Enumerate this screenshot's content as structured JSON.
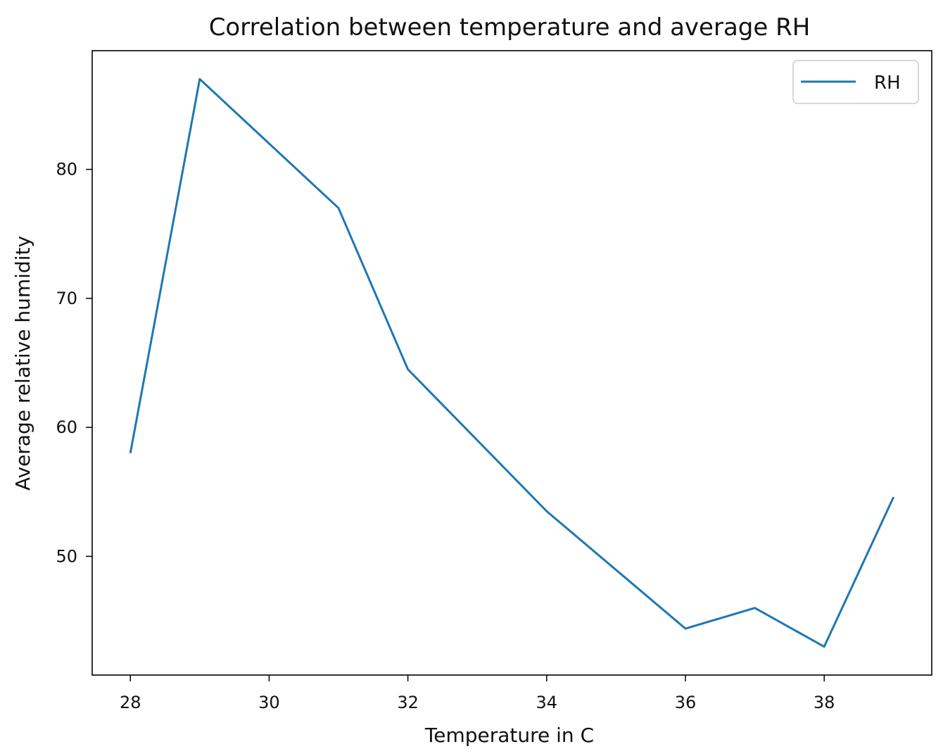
{
  "chart_data": {
    "type": "line",
    "title": "Correlation between temperature and average RH",
    "xlabel": "Temperature in C",
    "ylabel": "Average relative humidity",
    "x": [
      28,
      29,
      31,
      32,
      34,
      36,
      37,
      38,
      39
    ],
    "series": [
      {
        "name": "RH",
        "color": "#1f77b4",
        "values": [
          58.0,
          87.0,
          77.0,
          64.5,
          53.5,
          44.4,
          46.0,
          43.0,
          54.6
        ]
      }
    ],
    "xlim": [
      27.45,
      39.55
    ],
    "ylim": [
      40.8,
      89.2
    ],
    "xticks": [
      28,
      30,
      32,
      34,
      36,
      38
    ],
    "yticks": [
      50,
      60,
      70,
      80
    ],
    "grid": false,
    "legend": "top-right"
  }
}
